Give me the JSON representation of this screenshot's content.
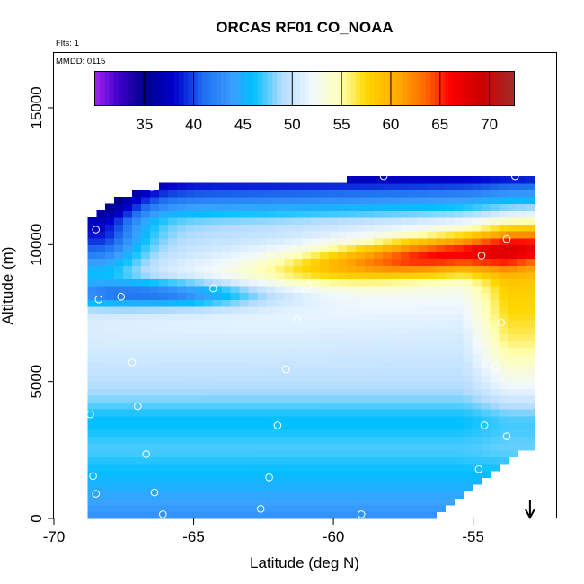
{
  "chart_data": {
    "type": "heatmap",
    "title": "ORCAS RF01 CO_NOAA",
    "xlabel": "Latitude (deg N)",
    "ylabel": "Altitude (m)",
    "xlim": [
      -70,
      -52
    ],
    "ylim": [
      0,
      17000
    ],
    "x_ticks": [
      -70,
      -65,
      -60,
      -55
    ],
    "x_tick_labels": [
      "-70",
      "-65",
      "-60",
      "-55"
    ],
    "y_ticks": [
      0,
      5000,
      10000,
      15000
    ],
    "y_tick_labels": [
      "0",
      "5000",
      "10000",
      "15000"
    ],
    "annotations": {
      "flights": "Flts: 1",
      "date": "MMDD: 0115"
    },
    "colorbar": {
      "min": 30,
      "max": 72.5,
      "ticks": [
        35,
        40,
        45,
        50,
        55,
        60,
        65,
        70
      ],
      "tick_labels": [
        "35",
        "40",
        "45",
        "50",
        "55",
        "60",
        "65",
        "70"
      ],
      "divider_values": [
        35,
        40,
        45,
        50,
        55,
        60,
        65,
        70
      ],
      "palette": [
        {
          "v": 30,
          "c": "#a020f0"
        },
        {
          "v": 32.5,
          "c": "#3a00c8"
        },
        {
          "v": 35,
          "c": "#00008b"
        },
        {
          "v": 38,
          "c": "#0000cd"
        },
        {
          "v": 41,
          "c": "#1e6ff0"
        },
        {
          "v": 44,
          "c": "#3aa0ff"
        },
        {
          "v": 46,
          "c": "#00bfff"
        },
        {
          "v": 49,
          "c": "#b4dcff"
        },
        {
          "v": 52,
          "c": "#f0f8ff"
        },
        {
          "v": 55,
          "c": "#ffffb0"
        },
        {
          "v": 57.5,
          "c": "#ffd700"
        },
        {
          "v": 61,
          "c": "#ffa500"
        },
        {
          "v": 63.5,
          "c": "#ff6a00"
        },
        {
          "v": 66,
          "c": "#ff0000"
        },
        {
          "v": 69,
          "c": "#cd0000"
        },
        {
          "v": 72.5,
          "c": "#a52a2a"
        }
      ]
    },
    "field_domain": {
      "lat_min": -68.8,
      "lat_max": -53.0,
      "alt_min": 0,
      "alt_max": 12500
    },
    "sample_points": [
      {
        "lat": -68.5,
        "alt": 10550
      },
      {
        "lat": -68.4,
        "alt": 8000
      },
      {
        "lat": -67.6,
        "alt": 8100
      },
      {
        "lat": -66.5,
        "alt": 12100
      },
      {
        "lat": -68.6,
        "alt": 1550
      },
      {
        "lat": -68.5,
        "alt": 900
      },
      {
        "lat": -68.7,
        "alt": 3800
      },
      {
        "lat": -67.2,
        "alt": 5700
      },
      {
        "lat": -67.0,
        "alt": 4100
      },
      {
        "lat": -66.7,
        "alt": 2350
      },
      {
        "lat": -66.4,
        "alt": 950
      },
      {
        "lat": -66.1,
        "alt": 150
      },
      {
        "lat": -64.3,
        "alt": 8400
      },
      {
        "lat": -62.6,
        "alt": 350
      },
      {
        "lat": -62.3,
        "alt": 1500
      },
      {
        "lat": -62.0,
        "alt": 3400
      },
      {
        "lat": -61.7,
        "alt": 5450
      },
      {
        "lat": -61.3,
        "alt": 7250
      },
      {
        "lat": -60.9,
        "alt": 8500
      },
      {
        "lat": -59.0,
        "alt": 150
      },
      {
        "lat": -58.2,
        "alt": 12500
      },
      {
        "lat": -55.1,
        "alt": 150
      },
      {
        "lat": -54.8,
        "alt": 1800
      },
      {
        "lat": -54.6,
        "alt": 3400
      },
      {
        "lat": -54.7,
        "alt": 9600
      },
      {
        "lat": -54.2,
        "alt": 5550
      },
      {
        "lat": -54.0,
        "alt": 7150
      },
      {
        "lat": -53.8,
        "alt": 10200
      },
      {
        "lat": -53.8,
        "alt": 3000
      },
      {
        "lat": -53.5,
        "alt": 12500
      }
    ],
    "arrow_marker": {
      "lat": -53.0,
      "direction": "down"
    }
  }
}
